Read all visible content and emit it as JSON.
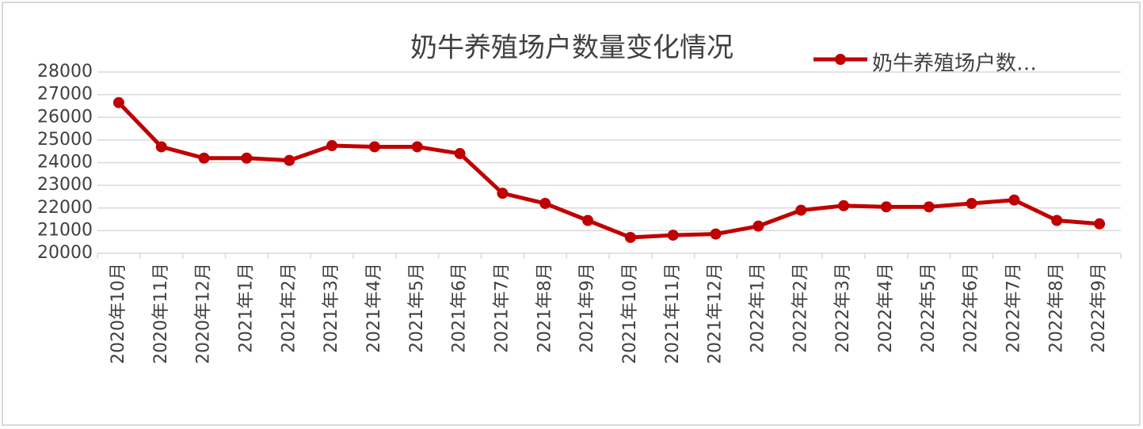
{
  "chart_data": {
    "type": "line",
    "title": "奶牛养殖场户数量变化情况",
    "categories": [
      "2020年10月",
      "2020年11月",
      "2020年12月",
      "2021年1月",
      "2021年2月",
      "2021年3月",
      "2021年4月",
      "2021年5月",
      "2021年6月",
      "2021年7月",
      "2021年8月",
      "2021年9月",
      "2021年10月",
      "2021年11月",
      "2021年12月",
      "2022年1月",
      "2022年2月",
      "2022年3月",
      "2022年4月",
      "2022年5月",
      "2022年6月",
      "2022年7月",
      "2022年8月",
      "2022年9月"
    ],
    "series": [
      {
        "name": "奶牛养殖场户数…",
        "color": "#c00000",
        "values": [
          26650,
          24700,
          24200,
          24200,
          24100,
          24750,
          24700,
          24700,
          24400,
          22650,
          22200,
          21450,
          20700,
          20800,
          20850,
          21200,
          21900,
          22100,
          22050,
          22050,
          22200,
          22350,
          21450,
          21300
        ]
      }
    ],
    "ylim": [
      20000,
      28000
    ],
    "yticks": [
      20000,
      21000,
      22000,
      23000,
      24000,
      25000,
      26000,
      27000,
      28000
    ],
    "grid": true,
    "legend": "top-right"
  }
}
